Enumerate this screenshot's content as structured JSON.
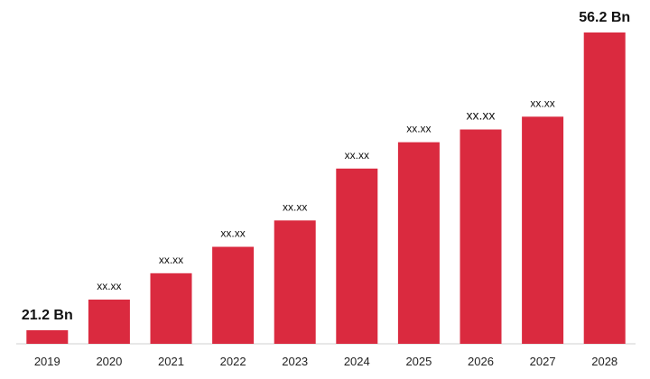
{
  "chart_data": {
    "type": "bar",
    "title": "",
    "xlabel": "",
    "ylabel": "",
    "categories": [
      "2019",
      "2020",
      "2021",
      "2022",
      "2023",
      "2024",
      "2025",
      "2026",
      "2027",
      "2028"
    ],
    "values": [
      21.2,
      24.8,
      27.9,
      31.0,
      34.1,
      40.2,
      43.3,
      44.8,
      46.3,
      56.2
    ],
    "data_labels": [
      "21.2 Bn",
      "xx.xx",
      "xx.xx",
      "xx.xx",
      "xx.xx",
      "xx.xx",
      "xx.xx",
      "xx.xx",
      "xx.xx",
      "56.2 Bn"
    ],
    "ylim": [
      19.6,
      56.2
    ],
    "grid": false,
    "legend": "none",
    "colors": {
      "bar": "#da2a3f",
      "axis": "#d0d0d0"
    }
  }
}
